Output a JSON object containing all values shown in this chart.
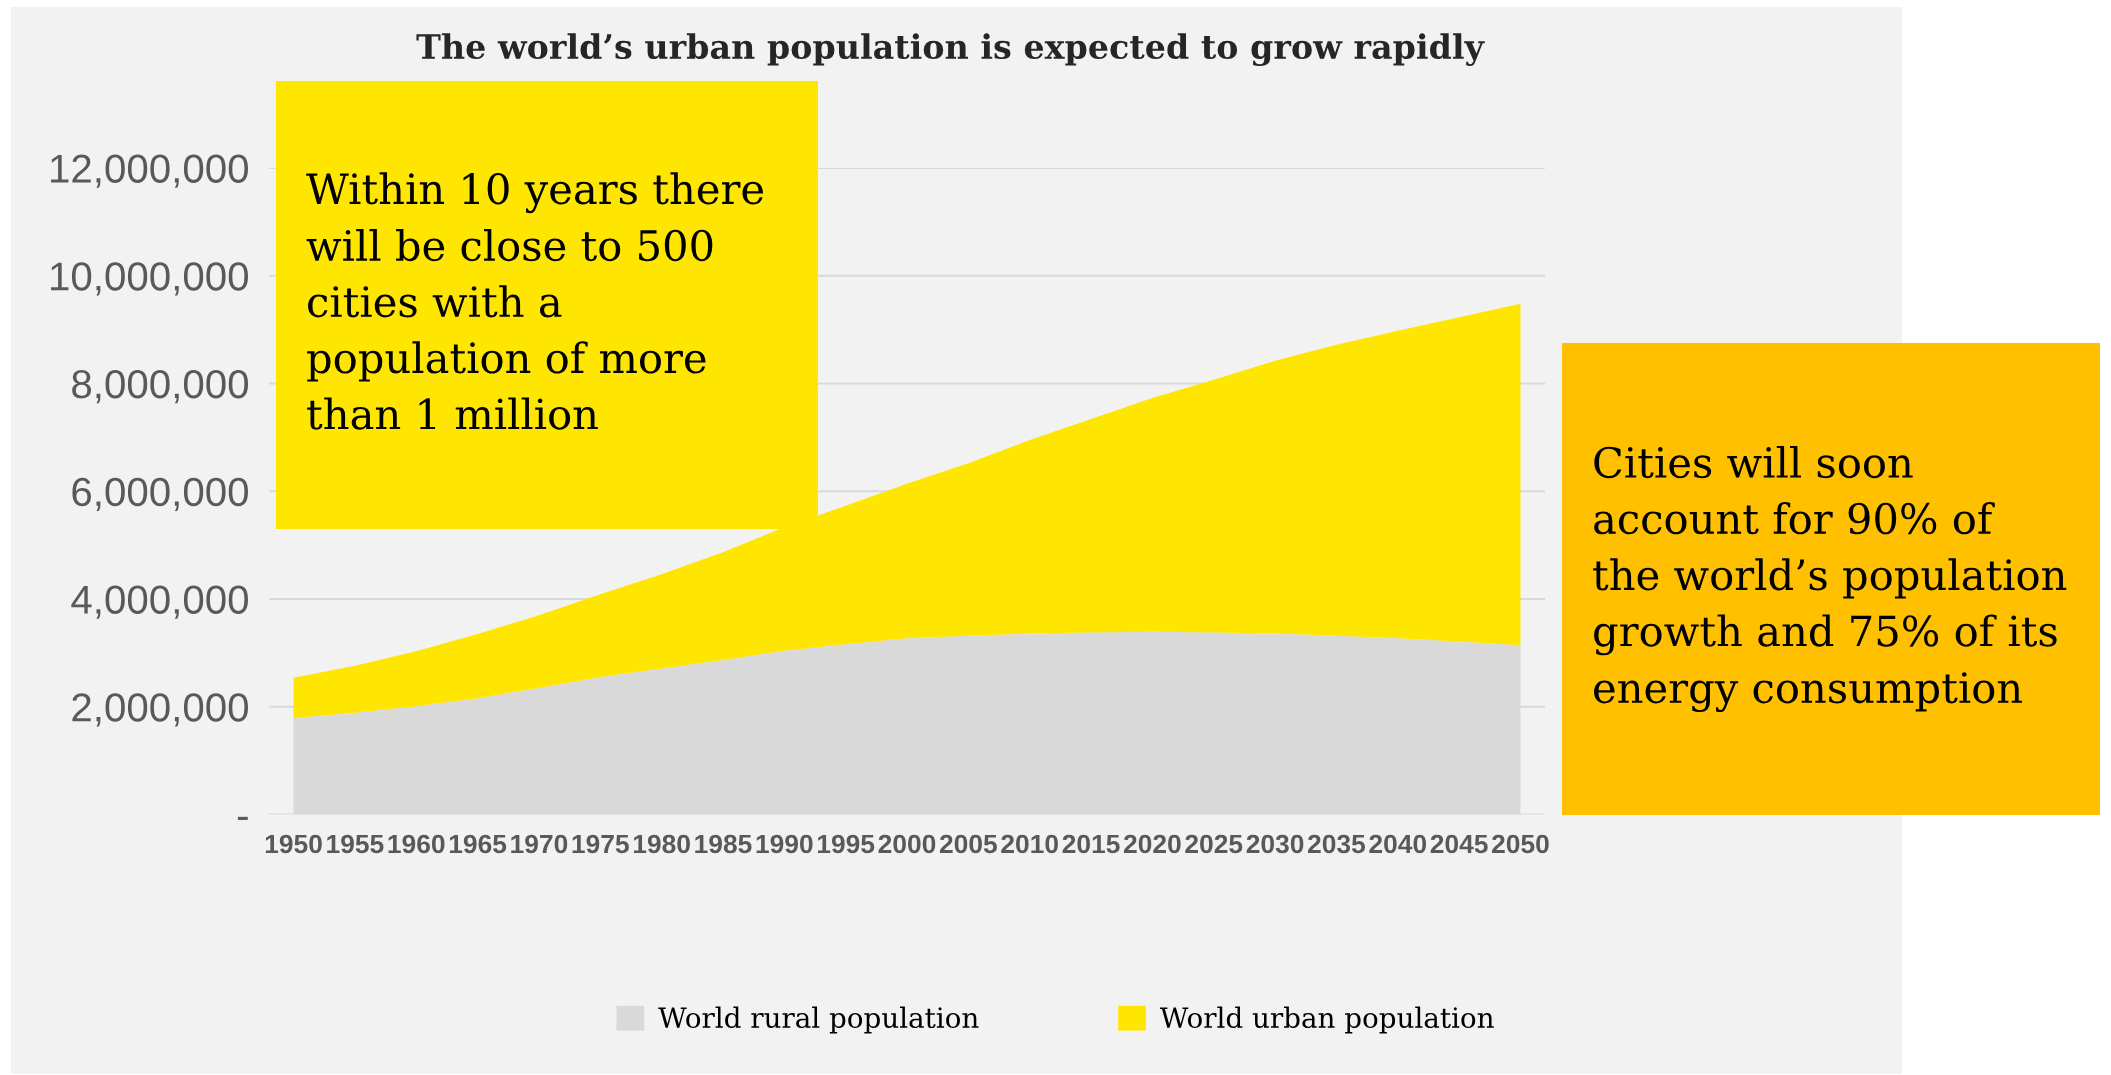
{
  "chart_data": {
    "type": "area",
    "stacked": true,
    "title": "The world’s urban population is expected to grow rapidly",
    "categories": [
      "1950",
      "1955",
      "1960",
      "1965",
      "1970",
      "1975",
      "1980",
      "1985",
      "1990",
      "1995",
      "2000",
      "2005",
      "2010",
      "2015",
      "2020",
      "2025",
      "2030",
      "2035",
      "2040",
      "2045",
      "2050"
    ],
    "series": [
      {
        "name": "World rural population",
        "color": "#d9d9d9",
        "values": [
          1790000,
          1890000,
          2010000,
          2160000,
          2350000,
          2550000,
          2710000,
          2870000,
          3040000,
          3160000,
          3270000,
          3320000,
          3360000,
          3380000,
          3390000,
          3380000,
          3360000,
          3320000,
          3270000,
          3210000,
          3140000
        ]
      },
      {
        "name": "World urban population",
        "color": "#ffe600",
        "values": [
          750000,
          870000,
          1020000,
          1190000,
          1350000,
          1540000,
          1750000,
          2000000,
          2290000,
          2570000,
          2870000,
          3200000,
          3590000,
          3960000,
          4340000,
          4690000,
          5060000,
          5400000,
          5710000,
          6020000,
          6340000
        ]
      }
    ],
    "ylim": [
      0,
      12000000
    ],
    "yticks": [
      {
        "value": 0,
        "label": "-"
      },
      {
        "value": 2000000,
        "label": "2,000,000"
      },
      {
        "value": 4000000,
        "label": "4,000,000"
      },
      {
        "value": 6000000,
        "label": "6,000,000"
      },
      {
        "value": 8000000,
        "label": "8,000,000"
      },
      {
        "value": 10000000,
        "label": "10,000,000"
      },
      {
        "value": 12000000,
        "label": "12,000,000"
      }
    ],
    "grid": "y",
    "legend": "bottom",
    "annotations": [
      "Within 10 years there will be close to 500 cities with a population of more than 1 million",
      "Cities will soon account for 90% of the world’s population growth and 75% of its energy consumption"
    ]
  }
}
